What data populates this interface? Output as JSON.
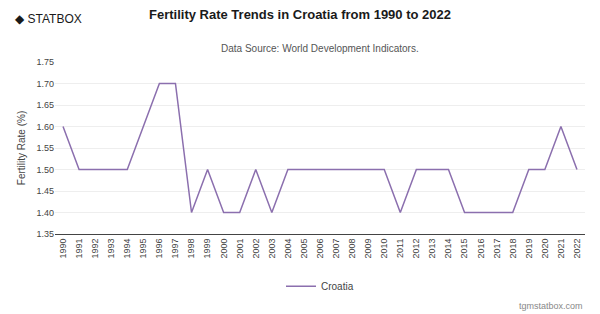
{
  "chart_data": {
    "type": "line",
    "title": "Fertility Rate Trends in Croatia from 1990 to 2022",
    "subtitle": "Data Source: World Development Indicators.",
    "ylabel": "Fertility Rate (%)",
    "annotations": [
      "◆ STATBOX",
      "tgmstatbox.com"
    ],
    "x": [
      1990,
      1991,
      1992,
      1993,
      1994,
      1995,
      1996,
      1997,
      1998,
      1999,
      2000,
      2001,
      2002,
      2003,
      2004,
      2005,
      2006,
      2007,
      2008,
      2009,
      2010,
      2011,
      2012,
      2013,
      2014,
      2015,
      2016,
      2017,
      2018,
      2019,
      2020,
      2021,
      2022
    ],
    "series": [
      {
        "name": "Croatia",
        "color": "#8B6FAE",
        "values": [
          1.6,
          1.5,
          1.5,
          1.5,
          1.5,
          1.6,
          1.7,
          1.7,
          1.4,
          1.5,
          1.4,
          1.4,
          1.5,
          1.4,
          1.5,
          1.5,
          1.5,
          1.5,
          1.5,
          1.5,
          1.5,
          1.4,
          1.5,
          1.5,
          1.5,
          1.4,
          1.4,
          1.4,
          1.4,
          1.5,
          1.5,
          1.6,
          1.5
        ]
      }
    ],
    "xlim": [
      1989.5,
      2022.5
    ],
    "xticks": [
      1990,
      1991,
      1992,
      1993,
      1994,
      1995,
      1996,
      1997,
      1998,
      1999,
      2000,
      2001,
      2002,
      2003,
      2004,
      2005,
      2006,
      2007,
      2008,
      2009,
      2010,
      2011,
      2012,
      2013,
      2014,
      2015,
      2016,
      2017,
      2018,
      2019,
      2020,
      2021,
      2022
    ],
    "ylim": [
      1.35,
      1.75
    ],
    "yticks": [
      1.35,
      {
        "value": 1.4,
        "label": "1.40"
      },
      1.45,
      {
        "value": 1.5,
        "label": "1.50"
      },
      1.55,
      {
        "value": 1.6,
        "label": "1.60"
      },
      1.65,
      {
        "value": 1.7,
        "label": "1.70"
      },
      1.75
    ],
    "grid": true,
    "legend": "bottom"
  }
}
